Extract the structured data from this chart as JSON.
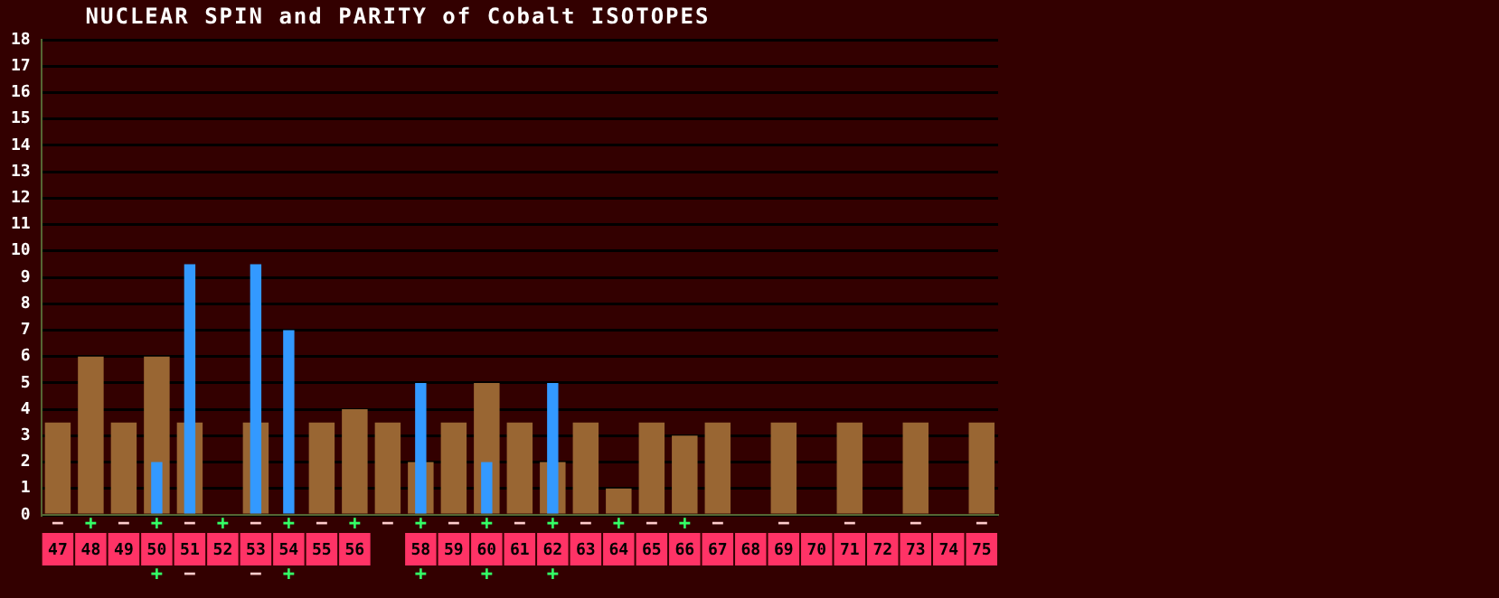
{
  "chart_data": {
    "type": "bar",
    "title": "NUCLEAR SPIN and PARITY of Cobalt ISOTOPES",
    "categories": [
      "47",
      "48",
      "49",
      "50",
      "51",
      "52",
      "53",
      "54",
      "55",
      "56",
      null,
      "58",
      "59",
      "60",
      "61",
      "62",
      "63",
      "64",
      "65",
      "66",
      "67",
      "68",
      "69",
      "70",
      "71",
      "72",
      "73",
      "74",
      "75"
    ],
    "series": [
      {
        "color": "#996633",
        "values": [
          3.5,
          6,
          3.5,
          6,
          3.5,
          0,
          3.5,
          0,
          3.5,
          4,
          3.5,
          2,
          3.5,
          5,
          3.5,
          2,
          3.5,
          1,
          3.5,
          3,
          3.5,
          null,
          3.5,
          null,
          3.5,
          null,
          3.5,
          null,
          3.5
        ],
        "value_labels": [
          "−",
          "+",
          "−",
          "+",
          "−",
          "+",
          "−",
          "+",
          "−",
          "+",
          "−",
          "+",
          "−",
          "+",
          "−",
          "+",
          "−",
          "+",
          "−",
          "+",
          "−",
          null,
          "−",
          null,
          "−",
          null,
          "−",
          null,
          "−"
        ]
      },
      {
        "color": "#3399ff",
        "values": [
          null,
          null,
          null,
          2,
          9.5,
          null,
          9.5,
          7,
          null,
          null,
          null,
          5,
          null,
          2,
          null,
          5,
          null,
          null,
          null,
          null,
          null,
          null,
          null,
          null,
          null,
          null,
          null,
          null,
          null
        ],
        "value_labels": [
          null,
          null,
          null,
          "+",
          "−",
          null,
          "−",
          "+",
          null,
          null,
          null,
          "+",
          null,
          "+",
          null,
          "+",
          null,
          null,
          null,
          null,
          null,
          null,
          null,
          null,
          null,
          null,
          null,
          null,
          null
        ]
      }
    ],
    "ylim": [
      0,
      18
    ],
    "yticks": [
      0,
      1,
      2,
      3,
      4,
      5,
      6,
      7,
      8,
      9,
      10,
      11,
      12,
      13,
      14,
      15,
      16,
      17,
      18
    ],
    "grid": "y",
    "legend": false
  }
}
